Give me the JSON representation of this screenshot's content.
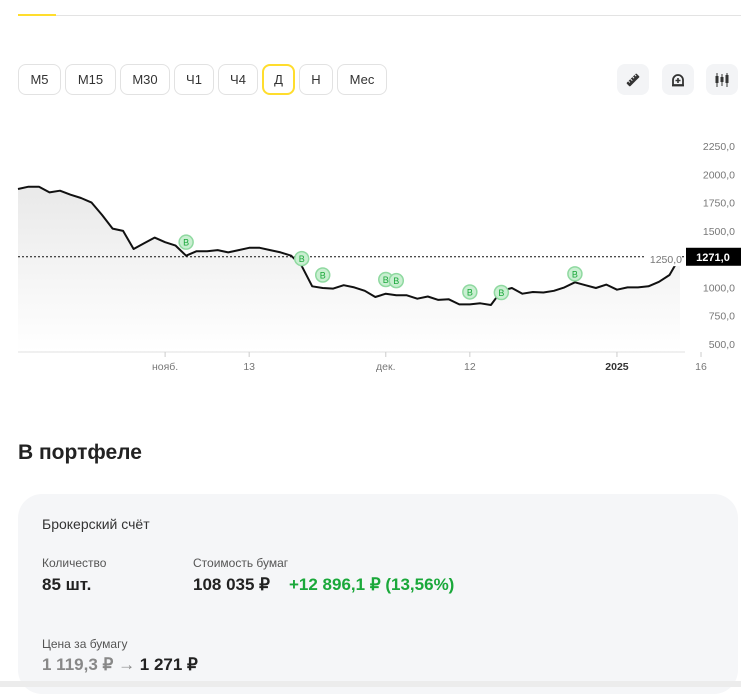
{
  "timeframes": [
    "М5",
    "М15",
    "М30",
    "Ч1",
    "Ч4",
    "Д",
    "Н",
    "Мес"
  ],
  "active_timeframe": "Д",
  "tools": [
    {
      "icon": "ruler-icon"
    },
    {
      "icon": "alarm-add-icon"
    },
    {
      "icon": "candles-icon"
    }
  ],
  "colors": {
    "accent": "#ffdd2d",
    "positive": "#1aa83a",
    "marker": "#1aa83a"
  },
  "chart_data": {
    "type": "line",
    "ylim": [
      500,
      2250
    ],
    "y_ticks": [
      "2250,0",
      "2000,0",
      "1750,0",
      "1500,0",
      "1250,0",
      "1000,0",
      "750,0",
      "500,0"
    ],
    "y_tick_values": [
      2250,
      2000,
      1750,
      1500,
      1250,
      1000,
      750,
      500
    ],
    "x_ticks": [
      {
        "label": "нояб.",
        "index": 14,
        "bold": false
      },
      {
        "label": "13",
        "index": 22,
        "bold": false
      },
      {
        "label": "дек.",
        "index": 35,
        "bold": false
      },
      {
        "label": "12",
        "index": 43,
        "bold": false
      },
      {
        "label": "2025",
        "index": 57,
        "bold": true
      },
      {
        "label": "16",
        "index": 65,
        "bold": false
      }
    ],
    "current_price": 1271,
    "current_price_label": "1271,0",
    "values": [
      1870,
      1890,
      1890,
      1840,
      1855,
      1820,
      1790,
      1750,
      1640,
      1520,
      1500,
      1340,
      1390,
      1440,
      1400,
      1370,
      1280,
      1320,
      1320,
      1330,
      1310,
      1330,
      1350,
      1350,
      1330,
      1310,
      1280,
      1190,
      1010,
      995,
      990,
      1020,
      1000,
      970,
      915,
      945,
      930,
      930,
      900,
      920,
      890,
      895,
      850,
      850,
      860,
      845,
      970,
      995,
      945,
      960,
      955,
      970,
      1000,
      1045,
      1020,
      995,
      1025,
      980,
      1000,
      1000,
      1010,
      1050,
      1110,
      1271
    ],
    "buy_markers": {
      "label": "B",
      "indices": [
        16,
        27,
        29,
        35,
        36,
        43,
        46,
        53
      ],
      "values": [
        1400,
        1255,
        1110,
        1070,
        1060,
        960,
        955,
        1120
      ]
    }
  },
  "portfolio": {
    "title": "В портфеле",
    "account": "Брокерский счёт",
    "quantity_label": "Количество",
    "quantity": "85 шт.",
    "value_label": "Стоимость бумаг",
    "value": "108 035 ₽",
    "change": "+12 896,1 ₽ (13,56%)",
    "price_label": "Цена за бумагу",
    "avg_price": "1 119,3 ₽",
    "arrow": "→",
    "current_price": "1 271 ₽"
  }
}
